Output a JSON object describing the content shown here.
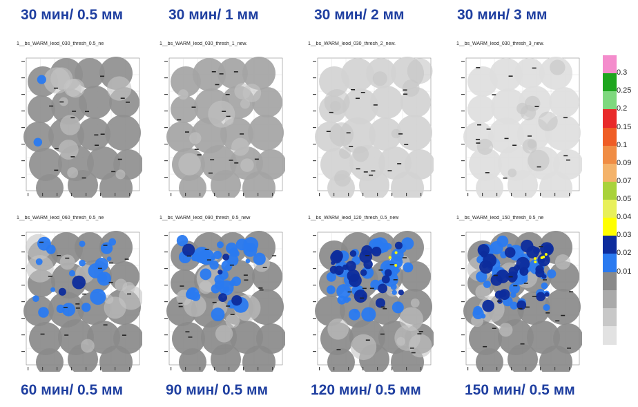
{
  "top_captions": [
    "30 мин/ 0.5 мм",
    "30 мин/ 1 мм",
    "30 мин/ 2 мм",
    "30 мин/ 3 мм"
  ],
  "bottom_captions": [
    "60 мин/ 0.5 мм",
    "90 мин/ 0.5 мм",
    "120 мин/ 0.5 мм",
    "150 мин/ 0.5 мм"
  ],
  "panels": [
    {
      "title": "1__bs_WARM_leod_030_thresh_0.5_ne",
      "base": "#8f8f8f",
      "blue": 0.02,
      "dark": 0.0,
      "yellow": 0
    },
    {
      "title": "1__bs_WARM_leod_030_thresh_1_new.",
      "base": "#a4a4a4",
      "blue": 0.0,
      "dark": 0.0,
      "yellow": 0
    },
    {
      "title": "1__bs_WARM_leod_030_thresh_2_new.",
      "base": "#d2d2d2",
      "blue": 0.0,
      "dark": 0.0,
      "yellow": 0
    },
    {
      "title": "1__bs_WARM_leod_030_thresh_3_new.",
      "base": "#dedede",
      "blue": 0.0,
      "dark": 0.0,
      "yellow": 0
    },
    {
      "title": "1__bs_WARM_leod_060_thresh_0.5_ne",
      "base": "#8a8a8a",
      "blue": 0.25,
      "dark": 0.02,
      "yellow": 0
    },
    {
      "title": "1__bs_WARM_leod_090_thresh_0.5_new",
      "base": "#8a8a8a",
      "blue": 0.45,
      "dark": 0.06,
      "yellow": 0
    },
    {
      "title": "1__bs_WARM_leod_120_thresh_0.5_new",
      "base": "#8a8a8a",
      "blue": 0.45,
      "dark": 0.3,
      "yellow": 3
    },
    {
      "title": "1__bs_WARM_leod_150_thresh_0.5_ne",
      "base": "#8a8a8a",
      "blue": 0.4,
      "dark": 0.45,
      "yellow": 5
    }
  ],
  "colorbar": {
    "colors": [
      "#f48ccc",
      "#1ea51e",
      "#7ed87e",
      "#e82a2a",
      "#ef5d25",
      "#f08d44",
      "#f4b36a",
      "#a9d23a",
      "#e8f05a",
      "#ffff00",
      "#0d2c9c",
      "#2a7af0",
      "#8a8a8a",
      "#aaaaaa",
      "#c8c8c8",
      "#e2e2e2"
    ],
    "ticks": [
      "0.3",
      "0.25",
      "0.2",
      "0.15",
      "0.1",
      "0.09",
      "0.07",
      "0.05",
      "0.04",
      "0.03",
      "0.02",
      "0.01"
    ]
  }
}
